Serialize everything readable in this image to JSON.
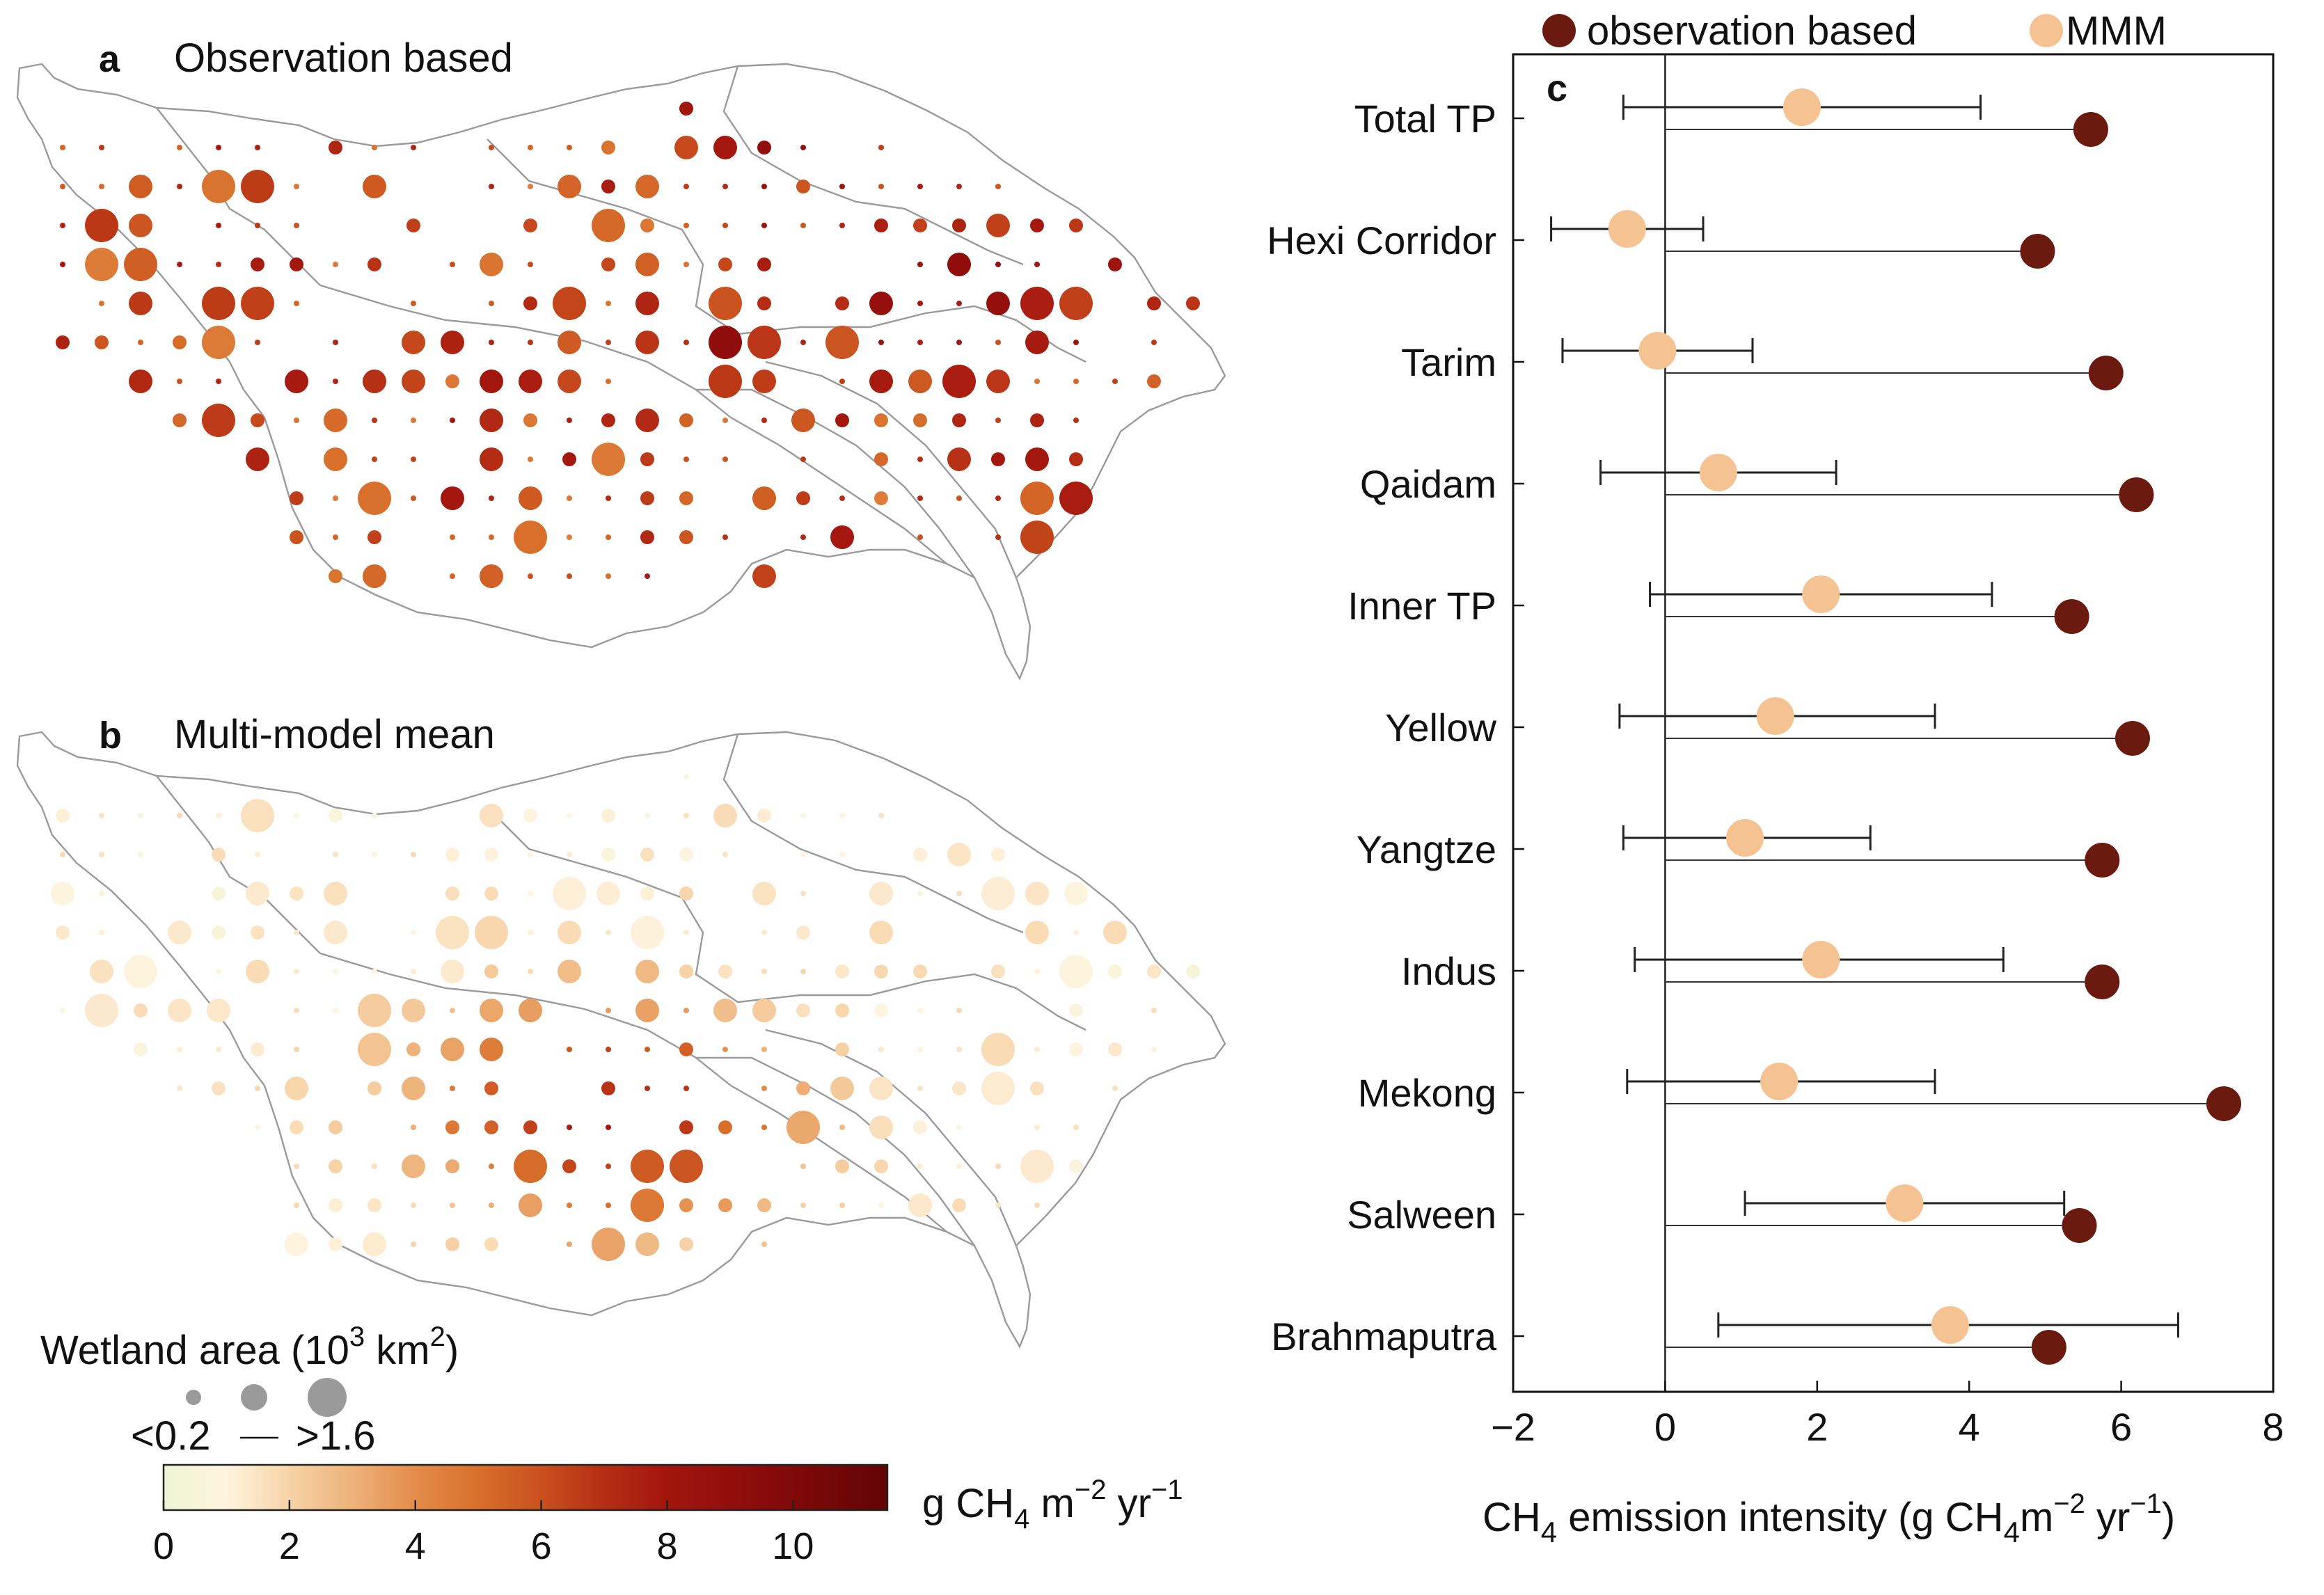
{
  "panel_a": {
    "label": "a",
    "title": "Observation based"
  },
  "panel_b": {
    "label": "b",
    "title": "Multi-model mean"
  },
  "panel_c": {
    "label": "c"
  },
  "size_legend": {
    "title_main": "Wetland area (10",
    "title_sup1": "3",
    "title_mid": " km",
    "title_sup2": "2",
    "title_end": ")",
    "low": "<0.2",
    "high": ">1.6"
  },
  "colorbar": {
    "unit_main": "g CH",
    "unit_sub": "4",
    "unit_m": " m",
    "unit_sup1": "−2",
    "unit_yr": " yr",
    "unit_sup2": "−1",
    "ticks": [
      "0",
      "2",
      "4",
      "6",
      "8",
      "10"
    ],
    "tick_values": [
      0,
      2,
      4,
      6,
      8,
      10
    ],
    "range": [
      0,
      11.5
    ],
    "stops": [
      {
        "v": 0,
        "c": "#edf5d3"
      },
      {
        "v": 1,
        "c": "#fff4df"
      },
      {
        "v": 2,
        "c": "#f7d3a7"
      },
      {
        "v": 3,
        "c": "#eeb27a"
      },
      {
        "v": 4,
        "c": "#e48c4a"
      },
      {
        "v": 5,
        "c": "#d8702c"
      },
      {
        "v": 6,
        "c": "#c9501e"
      },
      {
        "v": 7,
        "c": "#b52e14"
      },
      {
        "v": 8,
        "c": "#a2150e"
      },
      {
        "v": 9.5,
        "c": "#8a0b0b"
      },
      {
        "v": 11.5,
        "c": "#610404"
      }
    ]
  },
  "chart_data": {
    "type": "scatter",
    "categories": [
      "Total TP",
      "Hexi Corridor",
      "Tarim",
      "Qaidam",
      "Inner TP",
      "Yellow",
      "Yangtze",
      "Indus",
      "Mekong",
      "Salween",
      "Brahmaputra"
    ],
    "series": [
      {
        "name": "observation based",
        "color": "#6b1a0f",
        "values": [
          5.6,
          4.9,
          5.8,
          6.2,
          5.35,
          6.15,
          5.75,
          5.75,
          7.35,
          5.45,
          5.05
        ]
      },
      {
        "name": "MMM",
        "color": "#f5c391",
        "values": [
          1.8,
          -0.5,
          -0.1,
          0.7,
          2.05,
          1.45,
          1.05,
          2.05,
          1.5,
          3.15,
          3.75
        ],
        "err_low": [
          -0.55,
          -1.5,
          -1.35,
          -0.85,
          -0.2,
          -0.6,
          -0.55,
          -0.4,
          -0.5,
          1.05,
          0.7
        ],
        "err_high": [
          4.15,
          0.5,
          1.15,
          2.25,
          4.3,
          3.55,
          2.7,
          4.45,
          3.55,
          5.25,
          6.75
        ]
      }
    ],
    "xlabel_main": "CH",
    "xlabel_sub": "4",
    "xlabel_mid": " emission intensity (g CH",
    "xlabel_sub2": "4",
    "xlabel_m": "m",
    "xlabel_sup1": "−2",
    "xlabel_yr": " yr",
    "xlabel_sup2": "−1",
    "xlabel_end": ")",
    "xlim": [
      -2,
      8
    ],
    "xticks": [
      "−2",
      "0",
      "2",
      "4",
      "6",
      "8"
    ],
    "xtick_values": [
      -2,
      0,
      2,
      4,
      6,
      8
    ]
  }
}
